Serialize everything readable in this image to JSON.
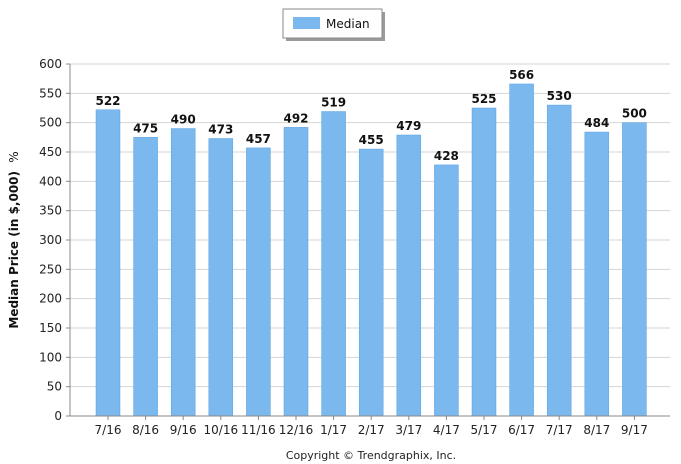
{
  "chart_data": {
    "type": "bar",
    "categories": [
      "7/16",
      "8/16",
      "9/16",
      "10/16",
      "11/16",
      "12/16",
      "1/17",
      "2/17",
      "3/17",
      "4/17",
      "5/17",
      "6/17",
      "7/17",
      "8/17",
      "9/17"
    ],
    "series": [
      {
        "name": "Median",
        "values": [
          522,
          475,
          490,
          473,
          457,
          492,
          519,
          455,
          479,
          428,
          525,
          566,
          530,
          484,
          500
        ]
      }
    ],
    "ylabel": "Median Price (in $,000)",
    "ylabel_unit": "%",
    "ylim": [
      0,
      600
    ],
    "yticks": [
      0,
      50,
      100,
      150,
      200,
      250,
      300,
      350,
      400,
      450,
      500,
      550,
      600
    ],
    "grid": true,
    "legend": "top-center",
    "bar_color": "#7ab8ee",
    "bar_edge_color": "#5aa2e0"
  },
  "footer": {
    "copyright": "Copyright © Trendgraphix, Inc."
  }
}
